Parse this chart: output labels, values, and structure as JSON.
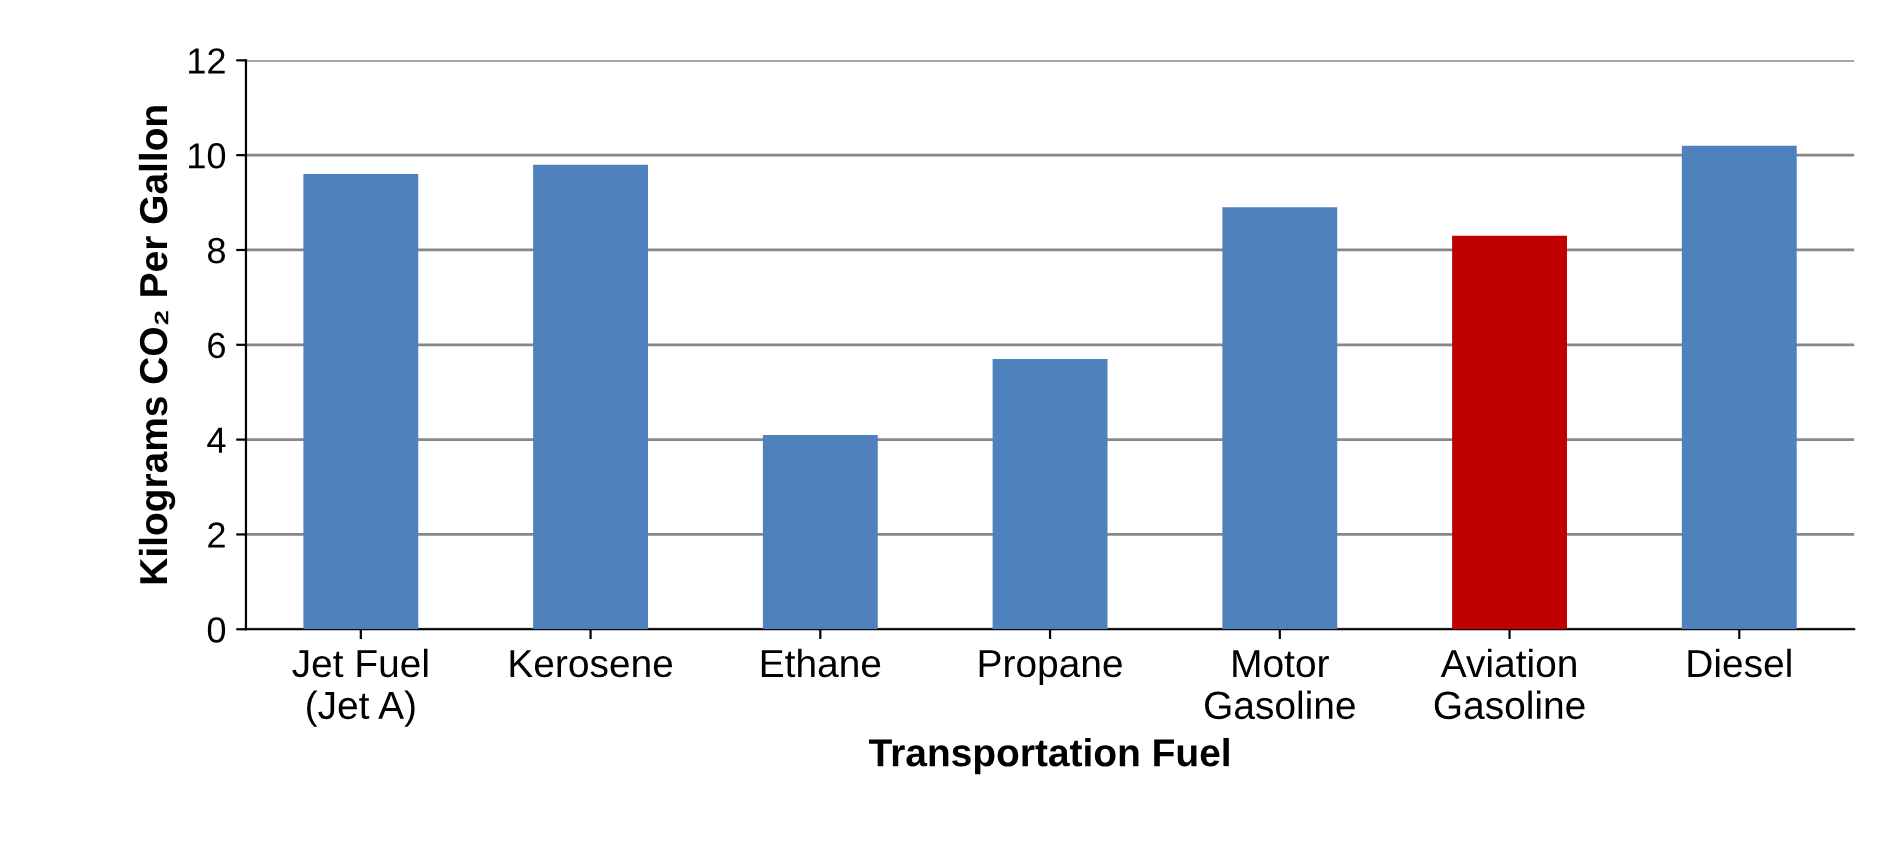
{
  "chart_data": {
    "type": "bar",
    "xlabel": "Transportation Fuel",
    "ylabel": "Kilograms CO₂ Per Gallon",
    "categories": [
      "Jet Fuel\n(Jet A)",
      "Kerosene",
      "Ethane",
      "Propane",
      "Motor\nGasoline",
      "Aviation\nGasoline",
      "Diesel"
    ],
    "values": [
      9.6,
      9.8,
      4.1,
      5.7,
      8.9,
      8.3,
      10.2
    ],
    "colors": [
      "#4f81bd",
      "#4f81bd",
      "#4f81bd",
      "#4f81bd",
      "#4f81bd",
      "#c00000",
      "#4f81bd"
    ],
    "ylim": [
      0,
      12
    ],
    "yticks": [
      0,
      2,
      4,
      6,
      8,
      10,
      12
    ],
    "grid": "y"
  }
}
